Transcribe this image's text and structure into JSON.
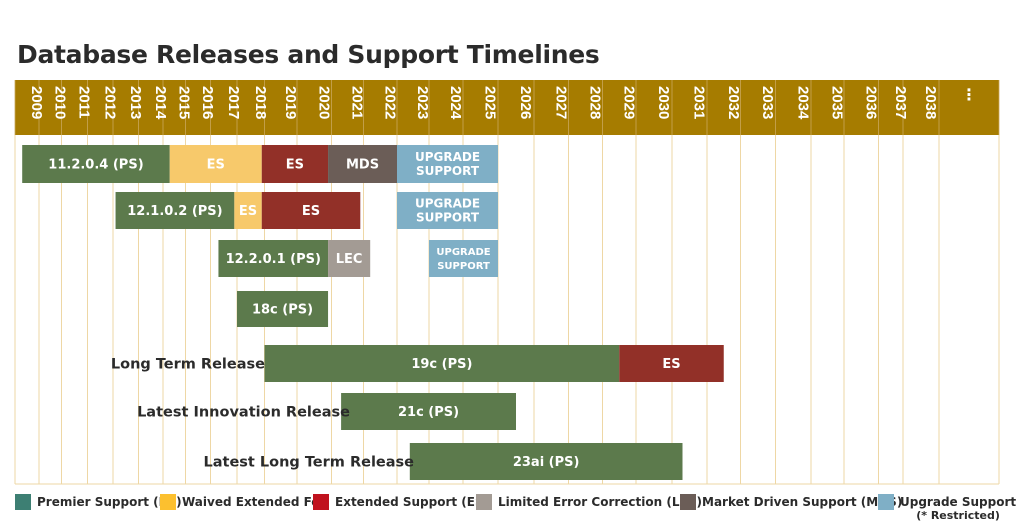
{
  "title": "Database Releases and Support Timelines",
  "colors": {
    "header": "#a67c00",
    "premier": "#5c7a4c",
    "waived": "#f7c96b",
    "extended": "#923028",
    "lec": "#a39b94",
    "mds": "#6b5d57",
    "upgrade": "#7fafc6",
    "grid": "#eed7a5"
  },
  "chart_data": {
    "type": "gantt",
    "years": [
      "2009",
      "2010",
      "2011",
      "2012",
      "2013",
      "2014",
      "2015",
      "2016",
      "2017",
      "2018",
      "2019",
      "2020",
      "2021",
      "2022",
      "2023",
      "2024",
      "2025",
      "2026",
      "2027",
      "2028",
      "2029",
      "2030",
      "2031",
      "2032",
      "2033",
      "2034",
      "2035",
      "2036",
      "2037",
      "2038",
      "…"
    ],
    "bars": [
      {
        "row": 0,
        "start": 2009.3,
        "end": 2015.3,
        "type": "premier",
        "label": "11.2.0.4 (PS)"
      },
      {
        "row": 0,
        "start": 2015.3,
        "end": 2018.9,
        "type": "waived",
        "label": "ES"
      },
      {
        "row": 0,
        "start": 2018.9,
        "end": 2020.9,
        "type": "extended",
        "label": "ES"
      },
      {
        "row": 0,
        "start": 2020.9,
        "end": 2023.0,
        "type": "mds",
        "label": "MDS"
      },
      {
        "row": 0,
        "start": 2023.0,
        "end": 2026.0,
        "type": "upgrade",
        "label": "UPGRADE|SUPPORT"
      },
      {
        "row": 1,
        "start": 2013.1,
        "end": 2017.9,
        "type": "premier",
        "label": "12.1.0.2 (PS)"
      },
      {
        "row": 1,
        "start": 2017.9,
        "end": 2018.9,
        "type": "waived",
        "label": "ES"
      },
      {
        "row": 1,
        "start": 2018.9,
        "end": 2021.9,
        "type": "extended",
        "label": "ES"
      },
      {
        "row": 1,
        "start": 2023.0,
        "end": 2026.0,
        "type": "upgrade",
        "label": "UPGRADE|SUPPORT"
      },
      {
        "row": 2,
        "start": 2017.3,
        "end": 2020.9,
        "type": "premier",
        "label": "12.2.0.1 (PS)"
      },
      {
        "row": 2,
        "start": 2020.9,
        "end": 2022.2,
        "type": "lec",
        "label": "LEC"
      },
      {
        "row": 2,
        "start": 2024.0,
        "end": 2026.0,
        "type": "upgrade",
        "label": "UPGRADE|SUPPORT"
      },
      {
        "row": 3,
        "start": 2018.0,
        "end": 2020.9,
        "type": "premier",
        "label": "18c (PS)"
      },
      {
        "row": 4,
        "start": 2019.0,
        "end": 2029.5,
        "type": "premier",
        "label": "19c (PS)"
      },
      {
        "row": 4,
        "start": 2029.5,
        "end": 2032.5,
        "type": "extended",
        "label": "ES"
      },
      {
        "row": 5,
        "start": 2021.3,
        "end": 2026.5,
        "type": "premier",
        "label": "21c (PS)"
      },
      {
        "row": 6,
        "start": 2023.4,
        "end": 2031.3,
        "type": "premier",
        "label": "23ai (PS)"
      }
    ],
    "row_labels": [
      {
        "row": 4,
        "text": "Long Term Release"
      },
      {
        "row": 5,
        "text": "Latest Innovation Release"
      },
      {
        "row": 6,
        "text": "Latest Long Term Release"
      }
    ]
  },
  "legend": [
    {
      "type": "premier",
      "label": "Premier Support (PS)",
      "sub": ""
    },
    {
      "type": "waived",
      "label": "Waived Extended Fee",
      "sub": ""
    },
    {
      "type": "extended",
      "label": "Extended Support (ES)",
      "sub": ""
    },
    {
      "type": "lec",
      "label": "Limited Error Correction (LEC)",
      "sub": ""
    },
    {
      "type": "mds",
      "label": "Market Driven Support (MDS)",
      "sub": ""
    },
    {
      "type": "upgrade",
      "label": "Upgrade Support",
      "sub": "(* Restricted)"
    }
  ]
}
